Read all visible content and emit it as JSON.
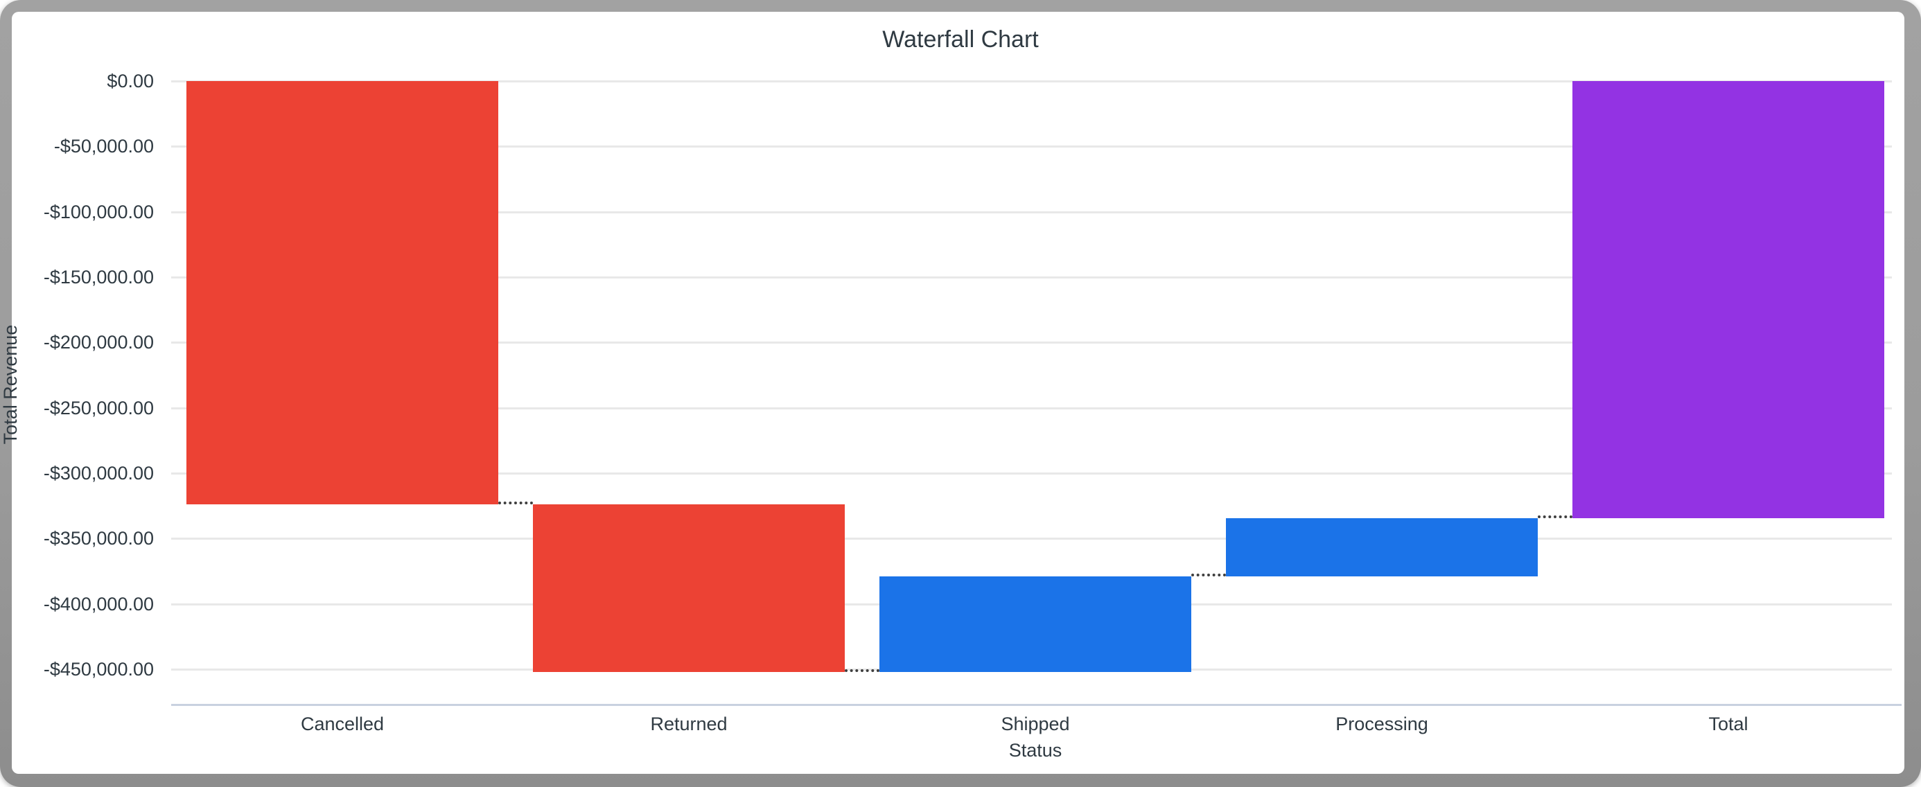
{
  "window": {
    "frame_color": "#9c9c9c",
    "canvas_color": "#ffffff"
  },
  "chart": {
    "title": "Waterfall Chart",
    "x_axis_label": "Status",
    "y_axis_label": "Total Revenue"
  },
  "chart_data": {
    "type": "waterfall",
    "title": "Waterfall Chart",
    "xlabel": "Status",
    "ylabel": "Total Revenue",
    "categories": [
      "Cancelled",
      "Returned",
      "Shipped",
      "Processing",
      "Total"
    ],
    "bars": [
      {
        "label": "Cancelled",
        "kind": "decrease",
        "delta": -323600,
        "start": 0,
        "end": -323600
      },
      {
        "label": "Returned",
        "kind": "decrease",
        "delta": -128300,
        "start": -323600,
        "end": -451900
      },
      {
        "label": "Shipped",
        "kind": "increase",
        "delta": 72900,
        "start": -451900,
        "end": -379000
      },
      {
        "label": "Processing",
        "kind": "increase",
        "delta": 44700,
        "start": -379000,
        "end": -334300
      },
      {
        "label": "Total",
        "kind": "total",
        "delta": -334300,
        "start": 0,
        "end": -334300
      }
    ],
    "y_ticks": [
      "$0.00",
      "-$50,000.00",
      "-$100,000.00",
      "-$150,000.00",
      "-$200,000.00",
      "-$250,000.00",
      "-$300,000.00",
      "-$350,000.00",
      "-$400,000.00",
      "-$450,000.00"
    ],
    "y_tick_values": [
      0,
      -50000,
      -100000,
      -150000,
      -200000,
      -250000,
      -300000,
      -350000,
      -400000,
      -450000
    ],
    "ylim": [
      -477000,
      0
    ],
    "grid": true,
    "legend": "none",
    "colors": {
      "decrease": "#ec4234",
      "increase": "#1b73e8",
      "total": "#9333e3"
    },
    "gridline_color": "#e8e8e8",
    "axis_line_color": "#c9d1e0",
    "connector_color": "#3f3f3f",
    "text_color": "#2f3a42"
  }
}
